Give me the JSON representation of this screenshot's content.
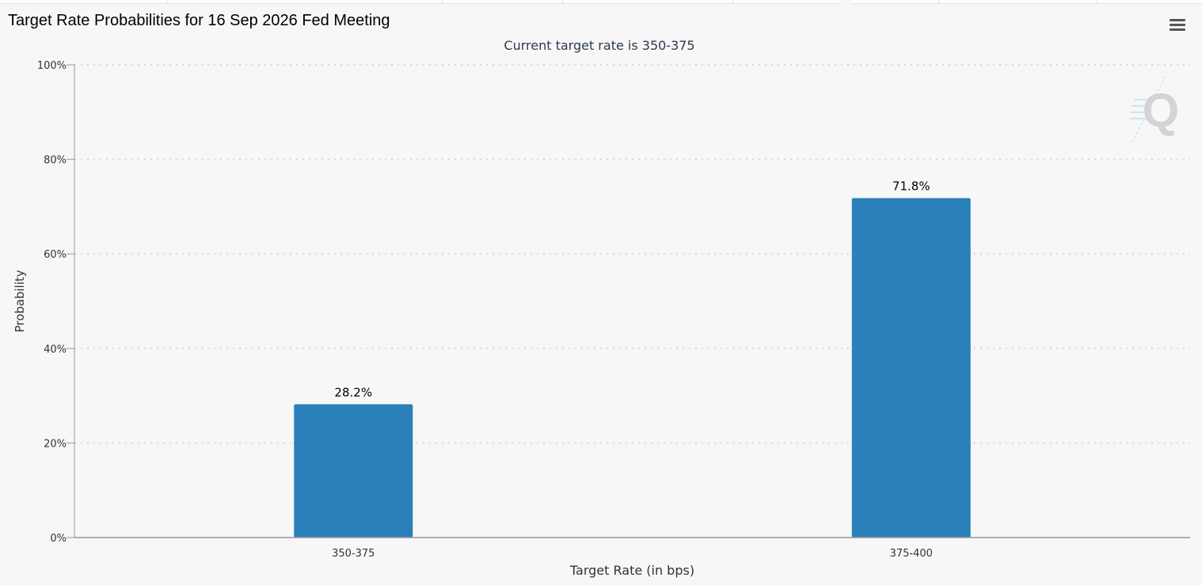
{
  "title": "Target Rate Probabilities for 16 Sep 2026 Fed Meeting",
  "menu": {
    "icon": "hamburger-menu-icon"
  },
  "watermark": {
    "icon": "q-logo-watermark-icon",
    "text": "Q"
  },
  "chart_data": {
    "type": "bar",
    "title": "Target Rate Probabilities for 16 Sep 2026 Fed Meeting",
    "subtitle": "Current target rate is 350-375",
    "xlabel": "Target Rate (in bps)",
    "ylabel": "Probability",
    "categories": [
      "350-375",
      "375-400"
    ],
    "values": [
      28.2,
      71.8
    ],
    "data_labels": [
      "28.2%",
      "71.8%"
    ],
    "ylim": [
      0,
      100
    ],
    "y_ticks": [
      0,
      20,
      40,
      60,
      80,
      100
    ],
    "y_tick_labels": [
      "0%",
      "20%",
      "40%",
      "60%",
      "80%",
      "100%"
    ],
    "grid": true,
    "legend": "none",
    "colors": {
      "bar": "#2a80b9",
      "grid": "#d8d8d8",
      "axis": "#999999",
      "text": "#333333",
      "subtitle": "#2d3a4f"
    }
  }
}
